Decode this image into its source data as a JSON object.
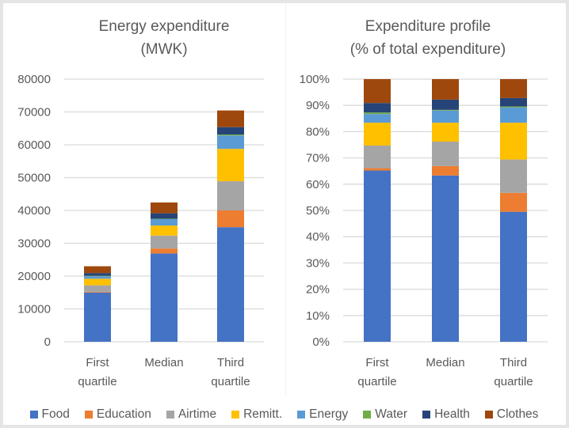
{
  "chart_data": [
    {
      "type": "bar",
      "stacked": true,
      "title": "Energy expenditure (MWK)",
      "title_lines": [
        "Energy expenditure",
        "(MWK)"
      ],
      "xlabel": "",
      "ylabel": "",
      "categories": [
        "First quartile",
        "Median",
        "Third quartile"
      ],
      "category_lines": [
        [
          "First",
          "quartile"
        ],
        [
          "Median"
        ],
        [
          "Third",
          "quartile"
        ]
      ],
      "ylim": [
        0,
        80000
      ],
      "yticks": [
        0,
        10000,
        20000,
        30000,
        40000,
        50000,
        60000,
        70000,
        80000
      ],
      "ytick_labels": [
        "0",
        "10000",
        "20000",
        "30000",
        "40000",
        "50000",
        "60000",
        "70000",
        "80000"
      ],
      "grid": true,
      "series": [
        {
          "name": "Food",
          "values": [
            15000,
            26900,
            34900
          ]
        },
        {
          "name": "Education",
          "values": [
            200,
            1500,
            5100
          ]
        },
        {
          "name": "Airtime",
          "values": [
            2000,
            3950,
            8900
          ]
        },
        {
          "name": "Remitt.",
          "values": [
            2000,
            3050,
            9850
          ]
        },
        {
          "name": "Energy",
          "values": [
            750,
            1950,
            4100
          ]
        },
        {
          "name": "Water",
          "values": [
            150,
            130,
            280
          ]
        },
        {
          "name": "Health",
          "values": [
            830,
            1650,
            2250
          ]
        },
        {
          "name": "Clothes",
          "values": [
            2070,
            3300,
            5070
          ]
        }
      ]
    },
    {
      "type": "bar",
      "stacked": true,
      "title": "Expenditure profile (% of total expenditure)",
      "title_lines": [
        "Expenditure profile",
        "(% of total expenditure)"
      ],
      "xlabel": "",
      "ylabel": "",
      "categories": [
        "First quartile",
        "Median",
        "Third quartile"
      ],
      "category_lines": [
        [
          "First",
          "quartile"
        ],
        [
          "Median"
        ],
        [
          "Third",
          "quartile"
        ]
      ],
      "ylim": [
        0,
        100
      ],
      "yticks": [
        0,
        10,
        20,
        30,
        40,
        50,
        60,
        70,
        80,
        90,
        100
      ],
      "ytick_labels": [
        "0%",
        "10%",
        "20%",
        "30%",
        "40%",
        "50%",
        "60%",
        "70%",
        "80%",
        "90%",
        "100%"
      ],
      "grid": true,
      "series": [
        {
          "name": "Food",
          "values": [
            65.2,
            63.3,
            49.5
          ]
        },
        {
          "name": "Education",
          "values": [
            0.9,
            3.6,
            7.2
          ]
        },
        {
          "name": "Airtime",
          "values": [
            8.6,
            9.3,
            12.7
          ]
        },
        {
          "name": "Remitt.",
          "values": [
            8.7,
            7.2,
            14.0
          ]
        },
        {
          "name": "Energy",
          "values": [
            3.3,
            4.6,
            5.8
          ]
        },
        {
          "name": "Water",
          "values": [
            0.6,
            0.3,
            0.4
          ]
        },
        {
          "name": "Health",
          "values": [
            3.6,
            3.9,
            3.2
          ]
        },
        {
          "name": "Clothes",
          "values": [
            9.1,
            7.8,
            7.2
          ]
        }
      ]
    }
  ],
  "legend": {
    "placement": "bottom",
    "items": [
      {
        "label": "Food",
        "color": "#4472c4"
      },
      {
        "label": "Education",
        "color": "#ed7d31"
      },
      {
        "label": "Airtime",
        "color": "#a5a5a5"
      },
      {
        "label": "Remitt.",
        "color": "#ffc000"
      },
      {
        "label": "Energy",
        "color": "#5b9bd5"
      },
      {
        "label": "Water",
        "color": "#70ad47"
      },
      {
        "label": "Health",
        "color": "#264478"
      },
      {
        "label": "Clothes",
        "color": "#9e480e"
      }
    ]
  }
}
